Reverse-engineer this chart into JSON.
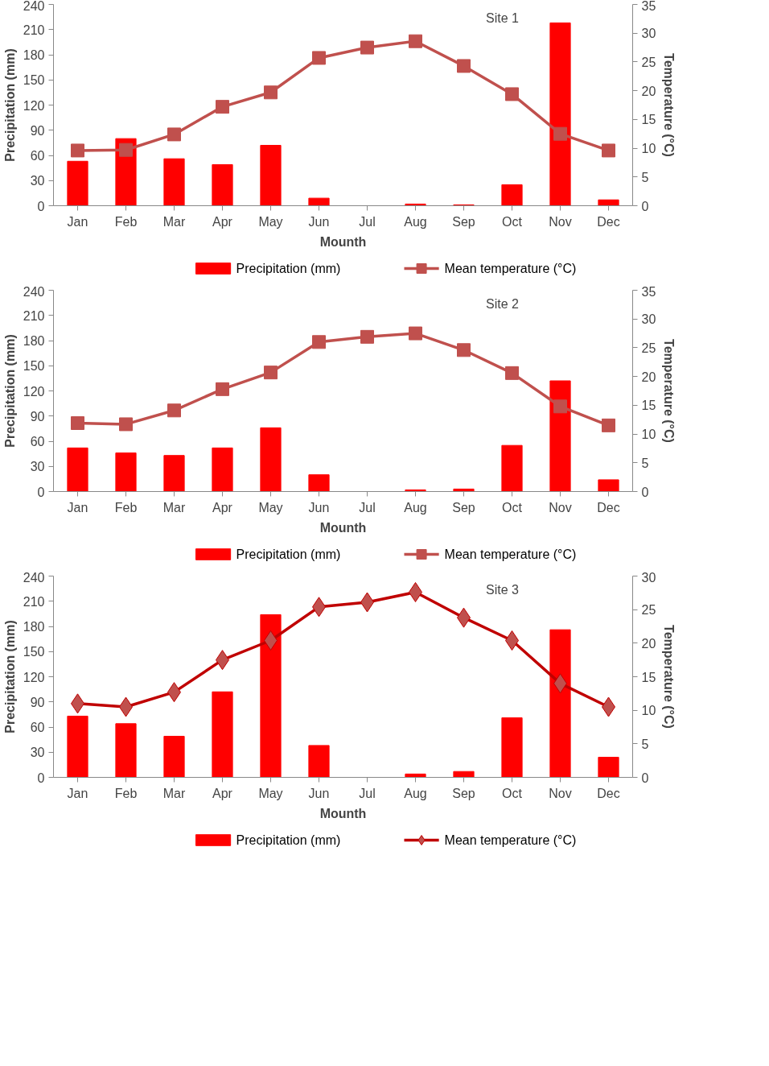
{
  "chart_data": [
    {
      "type": "bar",
      "categories": [
        "Jan",
        "Feb",
        "Mar",
        "Apr",
        "May",
        "Jun",
        "Jul",
        "Aug",
        "Sep",
        "Oct",
        "Nov",
        "Dec"
      ],
      "xlabel": "Mounth",
      "ylabel": "Precipitation (mm)",
      "y2label": "Temperature (°C)",
      "ylim": [
        0,
        240
      ],
      "yticks": [
        0,
        30,
        60,
        90,
        120,
        150,
        180,
        210,
        240
      ],
      "y2lim": [
        0,
        35
      ],
      "y2ticks": [
        0,
        5,
        10,
        15,
        20,
        25,
        30,
        35
      ],
      "grid": false,
      "legend": "bottom",
      "annotations": [
        "Site 1"
      ],
      "series": [
        {
          "name": "Precipitation (mm)",
          "color": "#ff0000",
          "values": [
            53,
            80,
            56,
            49,
            72,
            9,
            0,
            2,
            1,
            25,
            218,
            7
          ]
        },
        {
          "name": "Mean temperature (°C)",
          "type": "line",
          "axis": "y2",
          "marker": "square",
          "color": "#c0504d",
          "values": [
            9.6,
            9.7,
            12.4,
            17.2,
            19.7,
            25.7,
            27.5,
            28.6,
            24.3,
            19.4,
            12.5,
            9.6
          ]
        }
      ]
    },
    {
      "type": "bar",
      "categories": [
        "Jan",
        "Feb",
        "Mar",
        "Apr",
        "May",
        "Jun",
        "Jul",
        "Aug",
        "Sep",
        "Oct",
        "Nov",
        "Dec"
      ],
      "xlabel": "Mounth",
      "ylabel": "Precipitation (mm)",
      "y2label": "Temperature (°C)",
      "ylim": [
        0,
        240
      ],
      "yticks": [
        0,
        30,
        60,
        90,
        120,
        150,
        180,
        210,
        240
      ],
      "y2lim": [
        0,
        35
      ],
      "y2ticks": [
        0,
        5,
        10,
        15,
        20,
        25,
        30,
        35
      ],
      "grid": false,
      "legend": "bottom",
      "annotations": [
        "Site 2"
      ],
      "series": [
        {
          "name": "Precipitation (mm)",
          "color": "#ff0000",
          "values": [
            52,
            46,
            43,
            52,
            76,
            20,
            0,
            2,
            3,
            55,
            132,
            14
          ]
        },
        {
          "name": "Mean temperature (°C)",
          "type": "line",
          "axis": "y2",
          "marker": "square",
          "color": "#c0504d",
          "values": [
            11.9,
            11.7,
            14.1,
            17.8,
            20.7,
            26.0,
            26.9,
            27.5,
            24.6,
            20.6,
            14.8,
            11.5
          ]
        }
      ]
    },
    {
      "type": "bar",
      "categories": [
        "Jan",
        "Feb",
        "Mar",
        "Apr",
        "May",
        "Jun",
        "Jul",
        "Aug",
        "Sep",
        "Oct",
        "Nov",
        "Dec"
      ],
      "xlabel": "Mounth",
      "ylabel": "Precipitation (mm)",
      "y2label": "Temperature (°C)",
      "ylim": [
        0,
        240
      ],
      "yticks": [
        0,
        30,
        60,
        90,
        120,
        150,
        180,
        210,
        240
      ],
      "y2lim": [
        0,
        30
      ],
      "y2ticks": [
        0,
        5,
        10,
        15,
        20,
        25,
        30
      ],
      "grid": false,
      "legend": "bottom",
      "annotations": [
        "Site 3"
      ],
      "series": [
        {
          "name": "Precipitation (mm)",
          "color": "#ff0000",
          "values": [
            73,
            64,
            49,
            102,
            194,
            38,
            0,
            4,
            7,
            71,
            176,
            24
          ]
        },
        {
          "name": "Mean temperature (°C)",
          "type": "line",
          "axis": "y2",
          "marker": "diamond",
          "color": "#c00000",
          "values": [
            11.0,
            10.5,
            12.7,
            17.5,
            20.4,
            25.4,
            26.1,
            27.6,
            23.8,
            20.4,
            14.0,
            10.5
          ]
        }
      ]
    }
  ]
}
